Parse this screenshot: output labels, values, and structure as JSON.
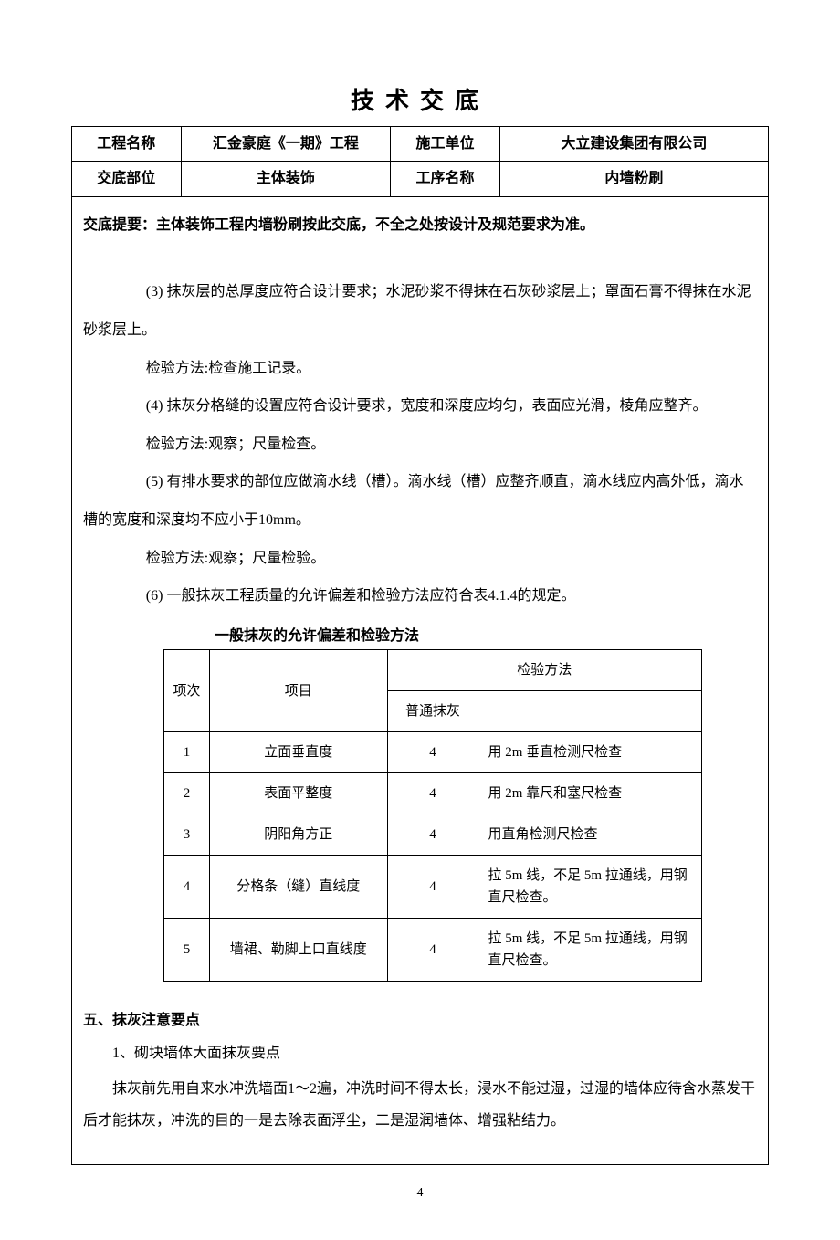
{
  "title": "技术交底",
  "header": {
    "row1": {
      "label1": "工程名称",
      "value1": "汇金豪庭《一期》工程",
      "label2": "施工单位",
      "value2": "大立建设集团有限公司"
    },
    "row2": {
      "label1": "交底部位",
      "value1": "主体装饰",
      "label2": "工序名称",
      "value2": "内墙粉刷"
    }
  },
  "summary": "交底提要：主体装饰工程内墙粉刷按此交底，不全之处按设计及规范要求为准。",
  "paragraphs": {
    "p1a": "(3) 抹灰层的总厚度应符合设计要求；水泥砂浆不得抹在石灰砂浆层上；罩面石膏不得抹在水泥",
    "p1b": "砂浆层上。",
    "p2": "检验方法:检查施工记录。",
    "p3": "(4) 抹灰分格缝的设置应符合设计要求，宽度和深度应均匀，表面应光滑，棱角应整齐。",
    "p4": "检验方法:观察；尺量检查。",
    "p5a": "(5) 有排水要求的部位应做滴水线（槽）。滴水线（槽）应整齐顺直，滴水线应内高外低，滴水",
    "p5b": "槽的宽度和深度均不应小于10mm。",
    "p6": "检验方法:观察；尺量检验。",
    "p7": "(6) 一般抹灰工程质量的允许偏差和检验方法应符合表4.1.4的规定。"
  },
  "spec_table": {
    "caption": "一般抹灰的允许偏差和检验方法",
    "headers": {
      "idx": "项次",
      "item": "项目",
      "method_group": "检验方法",
      "deviation": "普通抹灰",
      "method": ""
    },
    "rows": [
      {
        "idx": "1",
        "item": "立面垂直度",
        "dev": "4",
        "method": "用 2m 垂直检测尺检查"
      },
      {
        "idx": "2",
        "item": "表面平整度",
        "dev": "4",
        "method": "用 2m 靠尺和塞尺检查"
      },
      {
        "idx": "3",
        "item": "阴阳角方正",
        "dev": "4",
        "method": "用直角检测尺检查"
      },
      {
        "idx": "4",
        "item": "分格条（缝）直线度",
        "dev": "4",
        "method": "拉 5m 线，不足 5m 拉通线，用钢直尺检查。"
      },
      {
        "idx": "5",
        "item": "墙裙、勒脚上口直线度",
        "dev": "4",
        "method": "拉 5m 线，不足 5m 拉通线，用钢直尺检查。"
      }
    ]
  },
  "section5": {
    "heading": "五、抹灰注意要点",
    "sub1": "1、砌块墙体大面抹灰要点",
    "body_a": "抹灰前先用自来水冲洗墙面1～2遍，冲洗时间不得太长，浸水不能过湿，过湿的墙体应待含水蒸发干",
    "body_b": "后才能抹灰，冲洗的目的一是去除表面浮尘，二是湿润墙体、增强粘结力。"
  },
  "page_number": "4"
}
